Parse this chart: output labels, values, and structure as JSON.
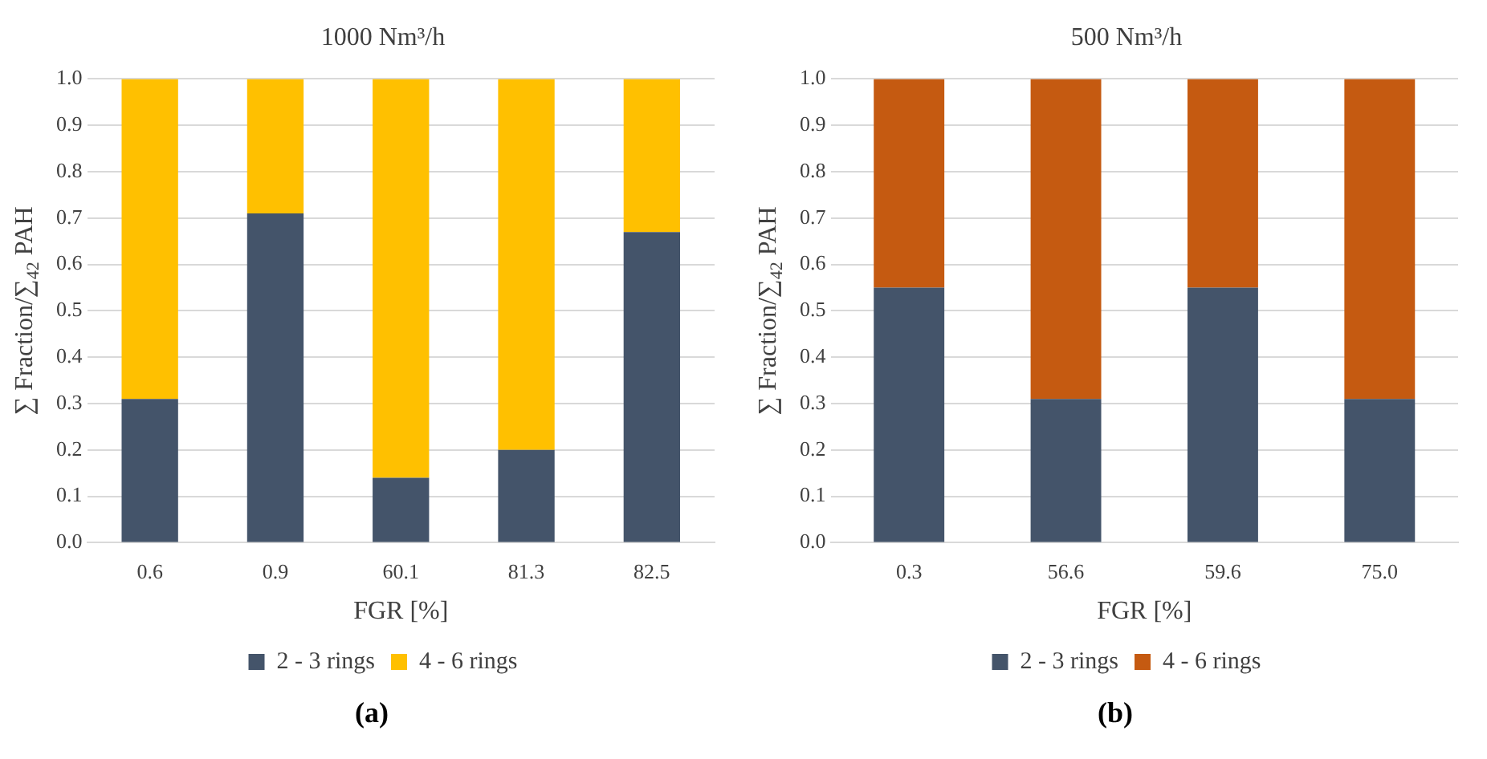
{
  "chart_data": [
    {
      "type": "bar",
      "stacked": true,
      "title": "1000 Nm³/h",
      "xlabel": "FGR [%]",
      "ylabel": "∑ Fraction/∑$_{42}$ PAH",
      "categories": [
        "0.6",
        "0.9",
        "60.1",
        "81.3",
        "82.5"
      ],
      "series": [
        {
          "name": "2 - 3 rings",
          "color": "#44546a",
          "values": [
            0.31,
            0.71,
            0.14,
            0.2,
            0.67
          ]
        },
        {
          "name": "4 - 6 rings",
          "color": "#ffc000",
          "values": [
            0.69,
            0.29,
            0.86,
            0.8,
            0.33
          ]
        }
      ],
      "ylim": [
        0,
        1
      ],
      "yticks": [
        {
          "value": 0,
          "label": "0.0"
        },
        {
          "value": 0.1,
          "label": "0.1"
        },
        {
          "value": 0.2,
          "label": "0.2"
        },
        {
          "value": 0.3,
          "label": "0.3"
        },
        {
          "value": 0.4,
          "label": "0.4"
        },
        {
          "value": 0.5,
          "label": "0.5"
        },
        {
          "value": 0.6,
          "label": "0.6"
        },
        {
          "value": 0.7,
          "label": "0.7"
        },
        {
          "value": 0.8,
          "label": "0.8"
        },
        {
          "value": 0.9,
          "label": "0.9"
        },
        {
          "value": 1,
          "label": "1.0"
        }
      ],
      "grid": "y",
      "legend": "bottom",
      "annotations": [
        "(a)"
      ]
    },
    {
      "type": "bar",
      "stacked": true,
      "title": "500 Nm³/h",
      "xlabel": "FGR [%]",
      "ylabel": "∑ Fraction/∑$_{42}$ PAH",
      "categories": [
        "0.3",
        "56.6",
        "59.6",
        "75.0"
      ],
      "series": [
        {
          "name": "2 - 3 rings",
          "color": "#44546a",
          "values": [
            0.55,
            0.31,
            0.55,
            0.31
          ]
        },
        {
          "name": "4 - 6 rings",
          "color": "#c55a11",
          "values": [
            0.45,
            0.69,
            0.45,
            0.69
          ]
        }
      ],
      "ylim": [
        0,
        1
      ],
      "yticks": [
        {
          "value": 0,
          "label": "0.0"
        },
        {
          "value": 0.1,
          "label": "0.1"
        },
        {
          "value": 0.2,
          "label": "0.2"
        },
        {
          "value": 0.3,
          "label": "0.3"
        },
        {
          "value": 0.4,
          "label": "0.4"
        },
        {
          "value": 0.5,
          "label": "0.5"
        },
        {
          "value": 0.6,
          "label": "0.6"
        },
        {
          "value": 0.7,
          "label": "0.7"
        },
        {
          "value": 0.8,
          "label": "0.8"
        },
        {
          "value": 0.9,
          "label": "0.9"
        },
        {
          "value": 1,
          "label": "1.0"
        }
      ],
      "grid": "y",
      "legend": "bottom",
      "annotations": [
        "(b)"
      ]
    }
  ]
}
